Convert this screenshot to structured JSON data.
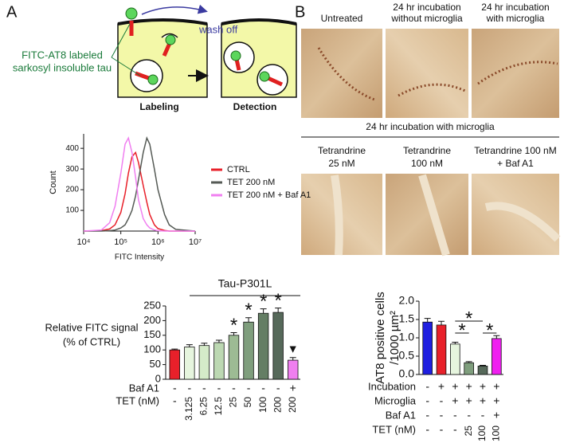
{
  "panel_labels": [
    "A",
    "B"
  ],
  "schematic": {
    "annotation": [
      "FITC-AT8 labeled",
      "sarkosyl insoluble tau"
    ],
    "arrow_label": "wash off",
    "steps": [
      "Labeling",
      "Detection"
    ]
  },
  "microscopy": {
    "row1_labels": [
      [
        "Untreated"
      ],
      [
        "24 hr incubation",
        "without microglia"
      ],
      [
        "24 hr incubation",
        "with microglia"
      ]
    ],
    "row2_heading": "24 hr incubation with microglia",
    "row2_labels": [
      [
        "Tetrandrine",
        "25 nM"
      ],
      [
        "Tetrandrine",
        "100 nM"
      ],
      [
        "Tetrandrine 100 nM",
        "+ Baf A1"
      ]
    ]
  },
  "chart_data": [
    {
      "type": "line",
      "xlabel": "FITC Intensity",
      "ylabel": "Count",
      "xscale": "log",
      "x": [
        10000,
        30000,
        50000,
        70000,
        100000,
        130000,
        160000,
        200000,
        250000,
        300000,
        400000,
        500000,
        600000,
        800000,
        1000000,
        1500000,
        2000000,
        3000000,
        10000000
      ],
      "xlim": [
        10000,
        10000000
      ],
      "xticks": [
        {
          "value": 10000,
          "label": "10⁴"
        },
        {
          "value": 100000,
          "label": "10⁵"
        },
        {
          "value": 1000000,
          "label": "10⁶"
        },
        {
          "value": 10000000,
          "label": "10⁷"
        }
      ],
      "ylim": [
        0,
        470
      ],
      "yticks": [
        100,
        200,
        300,
        400
      ],
      "legend": "right",
      "series": [
        {
          "name": "CTRL",
          "color": "#e8202a",
          "values": [
            0,
            2,
            10,
            30,
            90,
            180,
            280,
            360,
            380,
            330,
            220,
            140,
            80,
            30,
            12,
            3,
            0,
            0,
            0
          ]
        },
        {
          "name": "TET 200 nM",
          "color": "#555a55",
          "values": [
            0,
            0,
            2,
            5,
            15,
            30,
            60,
            100,
            170,
            250,
            380,
            450,
            420,
            300,
            200,
            80,
            30,
            8,
            0
          ]
        },
        {
          "name": "TET 200 nM + Baf A1",
          "color": "#f07ff0",
          "values": [
            0,
            5,
            40,
            120,
            280,
            420,
            450,
            380,
            260,
            150,
            60,
            30,
            15,
            5,
            2,
            0,
            0,
            0,
            0
          ]
        }
      ]
    },
    {
      "type": "bar",
      "ylabel": [
        "Relative FITC signal",
        "(% of CTRL)"
      ],
      "group_label": "Tau-P301L",
      "values": [
        100,
        110,
        115,
        125,
        150,
        195,
        225,
        228,
        65
      ],
      "errors": [
        3,
        8,
        8,
        8,
        9,
        15,
        15,
        15,
        9
      ],
      "colors": [
        "#e8202a",
        "#e6f5de",
        "#d5ebc9",
        "#bcd8b2",
        "#9dbb94",
        "#7f9e7d",
        "#647e64",
        "#56695a",
        "#f07ff0"
      ],
      "annotations": [
        null,
        null,
        null,
        null,
        "*",
        "*",
        "*",
        "*",
        "▼"
      ],
      "ylim": [
        0,
        250
      ],
      "yticks": [
        0,
        50,
        100,
        150,
        200,
        250
      ],
      "rows": [
        {
          "label": "Baf A1",
          "values": [
            "-",
            "-",
            "-",
            "-",
            "-",
            "-",
            "-",
            "-",
            "+"
          ]
        },
        {
          "label": "TET (nM)",
          "values": [
            "-",
            "3.125",
            "6.25",
            "12.5",
            "25",
            "50",
            "100",
            "200",
            "200"
          ]
        }
      ]
    },
    {
      "type": "bar",
      "ylabel": [
        "AT8 positive cells",
        "/1000 µm²"
      ],
      "values": [
        1.43,
        1.35,
        0.83,
        0.32,
        0.23,
        0.98
      ],
      "errors": [
        0.1,
        0.1,
        0.05,
        0.03,
        0.02,
        0.08
      ],
      "colors": [
        "#1f1fe0",
        "#e8202a",
        "#e6f5de",
        "#7f9e7d",
        "#56695a",
        "#f020f0"
      ],
      "ylim": [
        0,
        2
      ],
      "yticks": [
        {
          "value": 0,
          "label": "0.0"
        },
        {
          "value": 0.5,
          "label": "0.5"
        },
        {
          "value": 1,
          "label": "1.0"
        },
        {
          "value": 1.5,
          "label": "1.5"
        },
        {
          "value": 2,
          "label": "2.0"
        }
      ],
      "comparisons": [
        {
          "bars": [
            2,
            4
          ],
          "label": "*"
        },
        {
          "bars": [
            2,
            3
          ],
          "label": "*"
        },
        {
          "bars": [
            4,
            5
          ],
          "label": "*"
        }
      ],
      "rows": [
        {
          "label": "Incubation",
          "values": [
            "-",
            "+",
            "+",
            "+",
            "+",
            "+"
          ]
        },
        {
          "label": "Microglia",
          "values": [
            "-",
            "-",
            "+",
            "+",
            "+",
            "+"
          ]
        },
        {
          "label": "Baf A1",
          "values": [
            "-",
            "-",
            "-",
            "-",
            "-",
            "+"
          ]
        },
        {
          "label": "TET (nM)",
          "values": [
            "-",
            "-",
            "-",
            "25",
            "100",
            "100"
          ]
        }
      ]
    }
  ]
}
